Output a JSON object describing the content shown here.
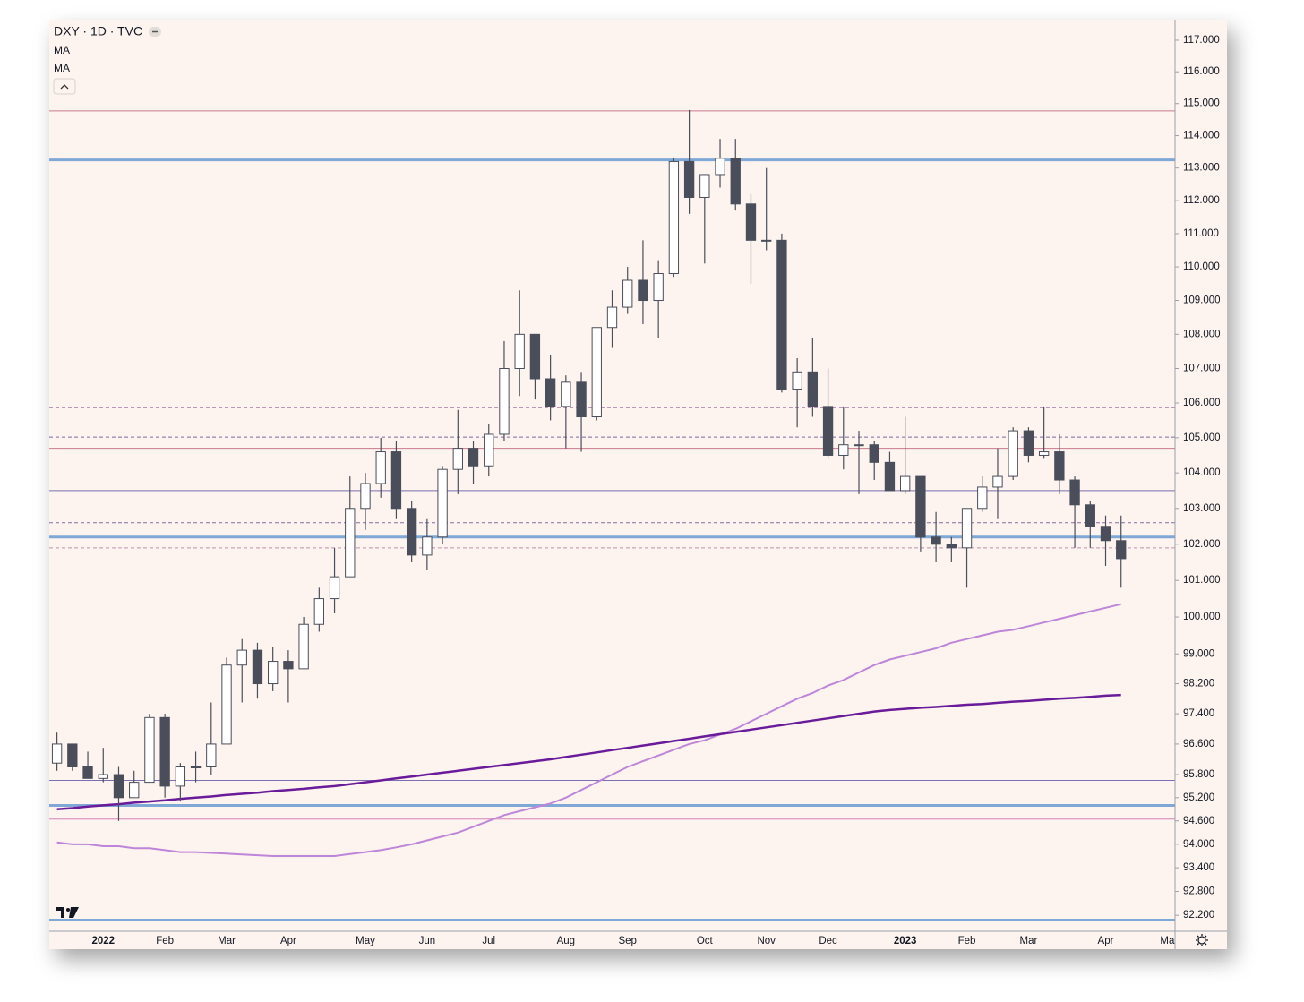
{
  "chart_data": {
    "type": "candlestick",
    "title": "DXY · 1D · TVC",
    "log_scale": true,
    "grid": false,
    "up_color": "#ffffff",
    "down_color": "#4a4e5a",
    "categories": [
      null,
      null,
      null,
      "2022",
      null,
      null,
      null,
      "Feb",
      null,
      null,
      null,
      "Mar",
      null,
      null,
      null,
      "Apr",
      null,
      null,
      null,
      null,
      "May",
      null,
      null,
      null,
      "Jun",
      null,
      null,
      null,
      "Jul",
      null,
      null,
      null,
      null,
      "Aug",
      null,
      null,
      null,
      "Sep",
      null,
      null,
      null,
      null,
      "Oct",
      null,
      null,
      null,
      "Nov",
      null,
      null,
      null,
      "Dec",
      null,
      null,
      null,
      null,
      "2023",
      null,
      null,
      null,
      "Feb",
      null,
      null,
      null,
      "Mar",
      null,
      null,
      null,
      null,
      "Apr",
      null,
      null,
      null,
      "Ma"
    ],
    "open": [
      96.1,
      96.6,
      96.0,
      95.7,
      95.8,
      95.2,
      95.6,
      97.3,
      95.5,
      96.0,
      96.0,
      96.6,
      98.7,
      99.1,
      98.2,
      98.8,
      98.6,
      99.8,
      100.5,
      101.1,
      103.0,
      103.7,
      104.6,
      103.0,
      101.7,
      102.2,
      104.1,
      104.7,
      104.2,
      105.1,
      107.0,
      108.0,
      106.7,
      105.9,
      106.6,
      105.6,
      108.2,
      108.8,
      109.6,
      109.0,
      109.8,
      113.2,
      112.1,
      112.8,
      113.3,
      111.9,
      110.8,
      110.8,
      106.4,
      106.9,
      105.9,
      104.5,
      104.8,
      104.8,
      104.3,
      103.5,
      103.9,
      102.2,
      102.0,
      101.9,
      103.0,
      103.6,
      103.9,
      105.2,
      104.5,
      104.6,
      103.8,
      103.1,
      102.5,
      102.1,
      null,
      null,
      null
    ],
    "high": [
      96.9,
      96.6,
      96.4,
      96.5,
      96.0,
      95.9,
      97.4,
      97.4,
      96.1,
      96.4,
      97.7,
      98.9,
      99.4,
      99.3,
      99.2,
      99.1,
      100.0,
      100.8,
      101.9,
      103.9,
      104.0,
      105.0,
      104.9,
      103.2,
      102.7,
      104.2,
      105.8,
      104.9,
      105.4,
      107.8,
      109.3,
      108.0,
      107.4,
      106.8,
      106.9,
      108.2,
      109.3,
      110.0,
      110.8,
      110.2,
      113.3,
      114.8,
      112.8,
      113.9,
      113.9,
      112.2,
      113.0,
      111.0,
      107.3,
      107.9,
      107.0,
      105.9,
      105.2,
      104.9,
      104.6,
      105.6,
      103.9,
      102.9,
      102.2,
      103.0,
      103.9,
      104.7,
      105.3,
      105.3,
      105.9,
      105.1,
      103.9,
      103.2,
      102.8,
      102.8,
      null,
      null,
      null
    ],
    "low": [
      95.9,
      95.9,
      95.7,
      95.6,
      94.6,
      95.2,
      95.6,
      95.2,
      95.1,
      95.6,
      95.8,
      96.6,
      97.7,
      97.8,
      98.0,
      97.7,
      98.6,
      99.6,
      100.1,
      101.1,
      102.4,
      103.3,
      102.7,
      101.5,
      101.3,
      102.0,
      103.4,
      103.7,
      103.9,
      104.9,
      106.2,
      106.1,
      105.5,
      104.7,
      104.6,
      105.5,
      107.6,
      108.6,
      108.3,
      107.9,
      109.7,
      111.6,
      110.1,
      112.4,
      111.7,
      109.5,
      110.5,
      106.3,
      105.3,
      105.6,
      104.4,
      104.1,
      103.4,
      103.8,
      103.5,
      103.4,
      101.8,
      101.5,
      101.5,
      100.8,
      102.9,
      102.7,
      103.8,
      104.3,
      104.4,
      103.4,
      101.9,
      101.9,
      101.4,
      100.8,
      null,
      null,
      null
    ],
    "close": [
      96.6,
      96.0,
      95.7,
      95.8,
      95.2,
      95.6,
      97.3,
      95.5,
      96.0,
      96.0,
      96.6,
      98.7,
      99.1,
      98.2,
      98.8,
      98.6,
      99.8,
      100.5,
      101.1,
      103.0,
      103.7,
      104.6,
      103.0,
      101.7,
      102.2,
      104.1,
      104.7,
      104.2,
      105.1,
      107.0,
      108.0,
      106.7,
      105.9,
      106.6,
      105.6,
      108.2,
      108.8,
      109.6,
      109.0,
      109.8,
      113.2,
      112.1,
      112.8,
      113.3,
      111.9,
      110.8,
      110.8,
      106.4,
      106.9,
      105.9,
      104.5,
      104.8,
      104.8,
      104.3,
      103.5,
      103.9,
      102.2,
      102.0,
      101.9,
      103.0,
      103.6,
      103.9,
      105.2,
      104.5,
      104.6,
      103.8,
      103.1,
      102.5,
      102.1,
      101.6,
      null,
      null,
      null
    ],
    "series": [
      {
        "name": "MA",
        "color": "#bf85d8",
        "values": [
          94.05,
          94.0,
          94.0,
          93.95,
          93.95,
          93.9,
          93.9,
          93.85,
          93.8,
          93.8,
          93.78,
          93.76,
          93.74,
          93.72,
          93.7,
          93.7,
          93.7,
          93.7,
          93.7,
          93.75,
          93.8,
          93.85,
          93.92,
          94.0,
          94.1,
          94.2,
          94.3,
          94.45,
          94.6,
          94.75,
          94.85,
          94.95,
          95.05,
          95.2,
          95.4,
          95.6,
          95.8,
          96.0,
          96.15,
          96.3,
          96.45,
          96.6,
          96.7,
          96.85,
          97.0,
          97.2,
          97.4,
          97.6,
          97.8,
          97.95,
          98.15,
          98.3,
          98.5,
          98.7,
          98.85,
          98.95,
          99.05,
          99.15,
          99.3,
          99.4,
          99.5,
          99.6,
          99.65,
          99.75,
          99.85,
          99.95,
          100.05,
          100.15,
          100.25,
          100.35,
          null,
          null,
          null
        ]
      },
      {
        "name": "MA",
        "color": "#6a1b9a",
        "values": [
          94.9,
          94.93,
          94.97,
          95.0,
          95.03,
          95.07,
          95.1,
          95.13,
          95.17,
          95.2,
          95.23,
          95.27,
          95.3,
          95.33,
          95.37,
          95.4,
          95.43,
          95.47,
          95.5,
          95.55,
          95.6,
          95.65,
          95.7,
          95.75,
          95.8,
          95.85,
          95.9,
          95.95,
          96.0,
          96.05,
          96.1,
          96.15,
          96.2,
          96.26,
          96.32,
          96.38,
          96.44,
          96.5,
          96.56,
          96.62,
          96.68,
          96.74,
          96.8,
          96.86,
          96.92,
          96.98,
          97.04,
          97.1,
          97.16,
          97.22,
          97.28,
          97.34,
          97.4,
          97.46,
          97.5,
          97.53,
          97.56,
          97.58,
          97.61,
          97.64,
          97.66,
          97.69,
          97.72,
          97.74,
          97.77,
          97.8,
          97.82,
          97.85,
          97.88,
          97.9,
          null,
          null,
          null
        ]
      }
    ],
    "levels": [
      {
        "value": 114.77,
        "color": "#c97a8e",
        "width": 1,
        "dashed": false
      },
      {
        "value": 113.25,
        "color": "#7fa8d6",
        "width": 3,
        "dashed": false
      },
      {
        "value": 105.86,
        "color": "#b088b0",
        "width": 1,
        "dashed": true
      },
      {
        "value": 105.02,
        "color": "#7a6aa0",
        "width": 1,
        "dashed": true
      },
      {
        "value": 104.7,
        "color": "#c97a8e",
        "width": 1,
        "dashed": false
      },
      {
        "value": 103.5,
        "color": "#7a6fb0",
        "width": 1,
        "dashed": false
      },
      {
        "value": 102.6,
        "color": "#8a6aa0",
        "width": 1,
        "dashed": true
      },
      {
        "value": 102.2,
        "color": "#7fa8d6",
        "width": 3,
        "dashed": false
      },
      {
        "value": 101.9,
        "color": "#c090b0",
        "width": 1,
        "dashed": true
      },
      {
        "value": 95.65,
        "color": "#7a6fb0",
        "width": 1,
        "dashed": false
      },
      {
        "value": 95.0,
        "color": "#7fa8d6",
        "width": 3,
        "dashed": false
      },
      {
        "value": 94.65,
        "color": "#e0a0c8",
        "width": 1.5,
        "dashed": false
      },
      {
        "value": 92.08,
        "color": "#7fa8d6",
        "width": 3,
        "dashed": false
      }
    ],
    "ylim": [
      91.8,
      117.6
    ],
    "yticks": [
      {
        "value": 117,
        "label": "117.000"
      },
      {
        "value": 116,
        "label": "116.000"
      },
      {
        "value": 115,
        "label": "115.000"
      },
      {
        "value": 114,
        "label": "114.000"
      },
      {
        "value": 113,
        "label": "113.000"
      },
      {
        "value": 112,
        "label": "112.000"
      },
      {
        "value": 111,
        "label": "111.000"
      },
      {
        "value": 110,
        "label": "110.000"
      },
      {
        "value": 109,
        "label": "109.000"
      },
      {
        "value": 108,
        "label": "108.000"
      },
      {
        "value": 107,
        "label": "107.000"
      },
      {
        "value": 106,
        "label": "106.000"
      },
      {
        "value": 105,
        "label": "105.000"
      },
      {
        "value": 104,
        "label": "104.000"
      },
      {
        "value": 103,
        "label": "103.000"
      },
      {
        "value": 102,
        "label": "102.000"
      },
      {
        "value": 101,
        "label": "101.000"
      },
      {
        "value": 100,
        "label": "100.000"
      },
      {
        "value": 99,
        "label": "99.000"
      },
      {
        "value": 98.2,
        "label": "98.200"
      },
      {
        "value": 97.4,
        "label": "97.400"
      },
      {
        "value": 96.6,
        "label": "96.600"
      },
      {
        "value": 95.8,
        "label": "95.800"
      },
      {
        "value": 95.2,
        "label": "95.200"
      },
      {
        "value": 94.6,
        "label": "94.600"
      },
      {
        "value": 94,
        "label": "94.000"
      },
      {
        "value": 93.4,
        "label": "93.400"
      },
      {
        "value": 92.8,
        "label": "92.800"
      },
      {
        "value": 92.2,
        "label": "92.200"
      }
    ]
  }
}
